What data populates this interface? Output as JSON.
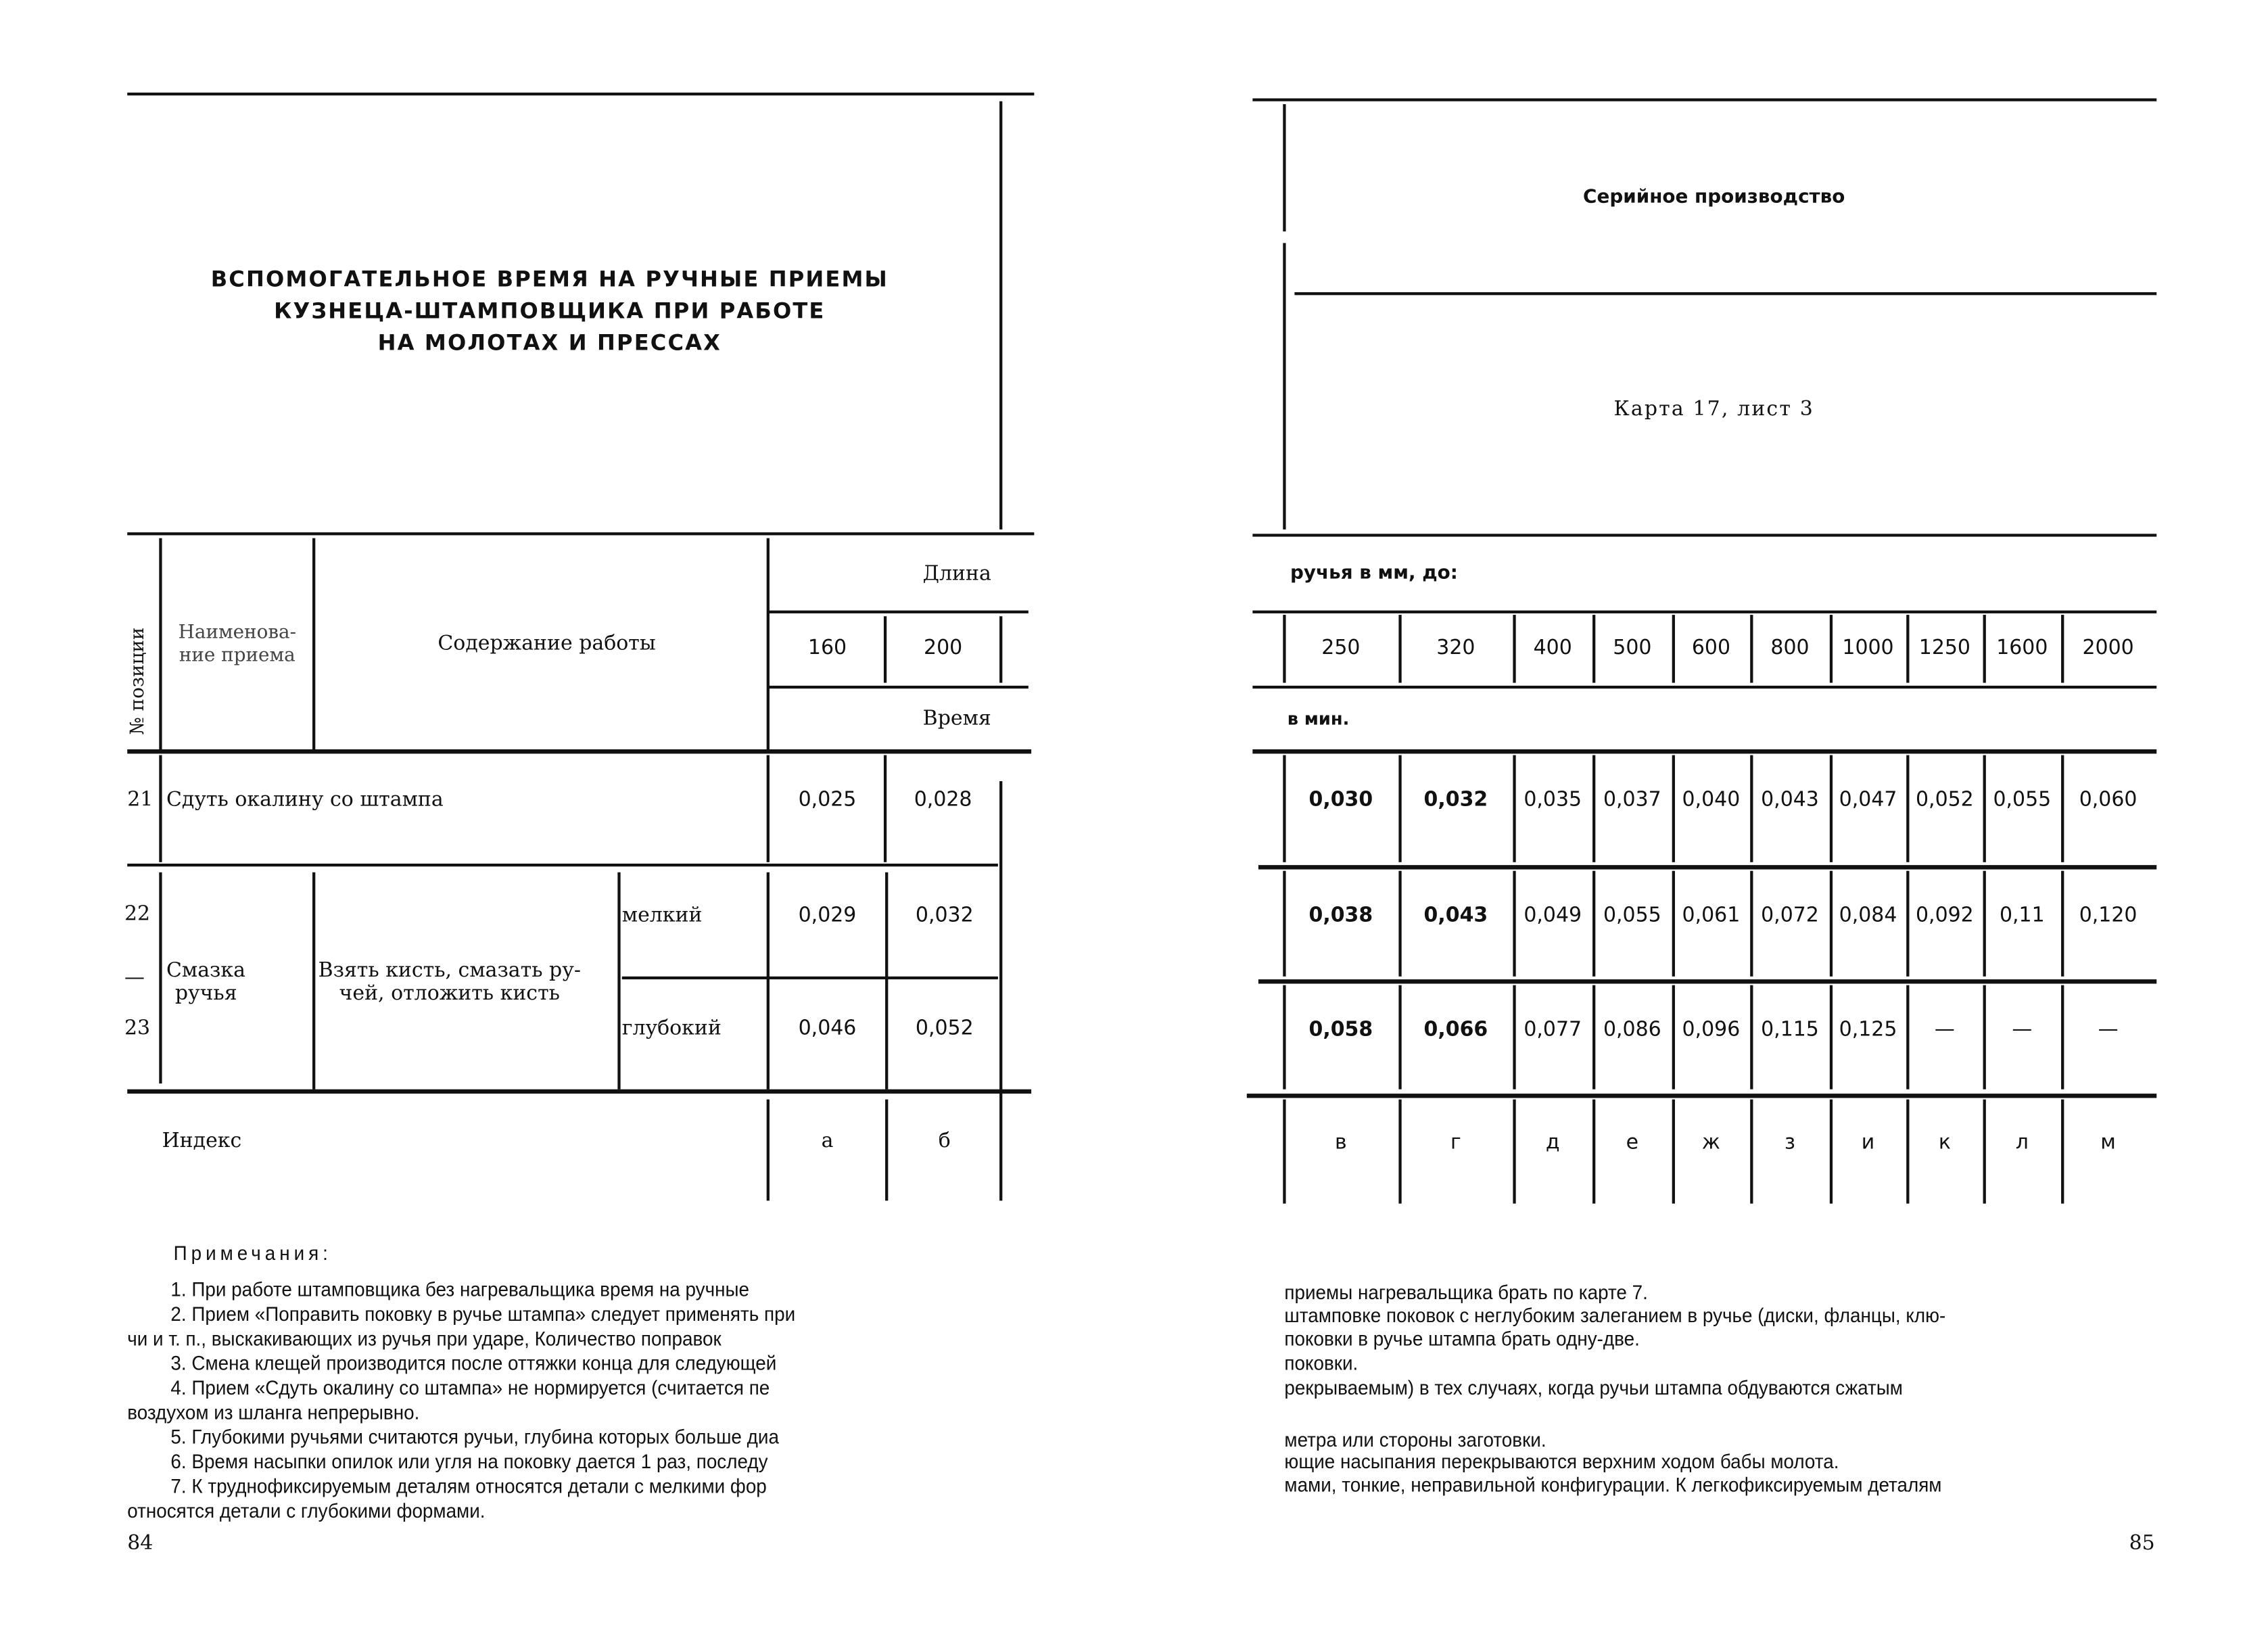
{
  "left_page": {
    "title_lines": [
      "ВСПОМОГАТЕЛЬНОЕ ВРЕМЯ НА РУЧНЫЕ ПРИЕМЫ",
      "КУЗНЕЦА-ШТАМПОВЩИКА ПРИ РАБОТЕ",
      "НА МОЛОТАХ И ПРЕССАХ"
    ],
    "headers": {
      "position": "№ позиции",
      "name": "Наименова-ние приема",
      "name_l1": "Наименова-",
      "name_l2": "ние приема",
      "content": "Содержание работы",
      "length": "Длина",
      "time": "Время"
    },
    "lengths": [
      "160",
      "200"
    ],
    "rows": [
      {
        "pos": "21",
        "text": "Сдуть окалину со штампа",
        "values": [
          "0,025",
          "0,028"
        ]
      },
      {
        "pos": "22",
        "kind": "мелкий",
        "values": [
          "0,029",
          "0,032"
        ]
      },
      {
        "pos": "23",
        "kind": "глубокий",
        "values": [
          "0,046",
          "0,052"
        ]
      }
    ],
    "group_22_23": {
      "name_l1": "Смазка",
      "name_l2": "ручья",
      "content_l1": "Взять кисть, смазать ру-",
      "content_l2": "чей, отложить кисть",
      "dash": "—"
    },
    "index_label": "Индекс",
    "index": [
      "а",
      "б"
    ],
    "notes_title": "Примечания:",
    "notes": [
      "1. При работе штамповщика без нагревальщика время на ручные",
      "2. Прием «Поправить поковку в ручье штампа» следует применять при",
      "чи и т. п., выскакивающих из ручья при ударе, Количество поправок",
      "3. Смена клещей производится после оттяжки конца для следующей",
      "4. Прием «Сдуть окалину со штампа» не нормируется (считается пе",
      "воздухом из шланга непрерывно.",
      "5. Глубокими ручьями считаются ручьи, глубина которых больше диа",
      "6. Время насыпки опилок или угля на поковку дается 1 раз, последу",
      "7. К труднофиксируемым деталям относятся детали с мелкими фор",
      "относятся детали с глубокими формами."
    ],
    "page_number": "84"
  },
  "right_page": {
    "production": "Серийное производство",
    "card": "Карта 17, лист 3",
    "length_cont": "ручья в мм, до:",
    "time_unit": "в мин.",
    "lengths": [
      "250",
      "320",
      "400",
      "500",
      "600",
      "800",
      "1000",
      "1250",
      "1600",
      "2000"
    ],
    "rows": [
      [
        "0,030",
        "0,032",
        "0,035",
        "0,037",
        "0,040",
        "0,043",
        "0,047",
        "0,052",
        "0,055",
        "0,060"
      ],
      [
        "0,038",
        "0,043",
        "0,049",
        "0,055",
        "0,061",
        "0,072",
        "0,084",
        "0,092",
        "0,11",
        "0,120"
      ],
      [
        "0,058",
        "0,066",
        "0,077",
        "0,086",
        "0,096",
        "0,115",
        "0,125",
        "—",
        "—",
        "—"
      ]
    ],
    "index": [
      "в",
      "г",
      "д",
      "е",
      "ж",
      "з",
      "и",
      "к",
      "л",
      "м"
    ],
    "notes": [
      "приемы нагревальщика брать по карте 7.",
      "штамповке поковок с неглубоким залеганием в ручье (диски, фланцы, клю-",
      "поковки в ручье штампа брать одну-две.",
      "поковки.",
      "рекрываемым) в тех случаях, когда ручьи штампа обдуваются сжатым",
      "метра или стороны заготовки.",
      "ющие насыпания перекрываются верхним ходом бабы молота.",
      "мами, тонкие, неправильной конфигурации. К легкофиксируемым деталям"
    ],
    "page_number": "85"
  }
}
